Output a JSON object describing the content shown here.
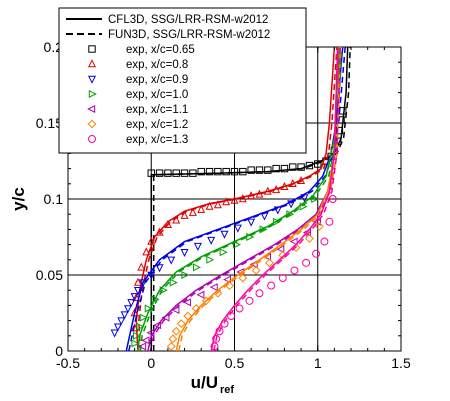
{
  "chart_data": {
    "type": "line",
    "xlabel": "u/U",
    "xlabel_sub": "ref",
    "ylabel": "y/c",
    "xlim": [
      -0.5,
      1.5
    ],
    "ylim": [
      0,
      0.2
    ],
    "x_ticks": [
      -0.5,
      0,
      0.5,
      1,
      1.5
    ],
    "x_tick_labels": [
      "-0.5",
      "0",
      "0.5",
      "1",
      "1.5"
    ],
    "y_ticks": [
      0,
      0.05,
      0.1,
      0.15,
      0.2
    ],
    "y_tick_labels": [
      "0",
      "0.05",
      "0.1",
      "0.15",
      "0.2"
    ],
    "grid": true,
    "legend_position": "top-left",
    "legend": [
      {
        "label": "CFL3D, SSG/LRR-RSM-w2012",
        "style": "solid-line",
        "color": "#000000"
      },
      {
        "label": "FUN3D, SSG/LRR-RSM-w2012",
        "style": "dashed-line",
        "color": "#000000"
      },
      {
        "label": "exp, x/c=0.65",
        "style": "square",
        "color": "#000000"
      },
      {
        "label": "exp, x/c=0.8",
        "style": "triangle-up",
        "color": "#e00000"
      },
      {
        "label": "exp, x/c=0.9",
        "style": "triangle-down",
        "color": "#0000e0"
      },
      {
        "label": "exp, x/c=1.0",
        "style": "triangle-right",
        "color": "#00a000"
      },
      {
        "label": "exp, x/c=1.1",
        "style": "triangle-left",
        "color": "#b000b0"
      },
      {
        "label": "exp, x/c=1.2",
        "style": "diamond",
        "color": "#ff8000"
      },
      {
        "label": "exp, x/c=1.3",
        "style": "circle",
        "color": "#ff00a0"
      }
    ],
    "series": [
      {
        "label_ref": "exp, x/c=0.65",
        "color": "#000000",
        "marker": "square",
        "cfd_x": [
          0,
          0,
          0.4,
          0.7,
          0.9,
          1.02,
          1.1,
          1.14,
          1.15,
          1.17,
          1.18
        ],
        "cfd_y": [
          0,
          0.116,
          0.117,
          0.118,
          0.12,
          0.125,
          0.13,
          0.14,
          0.15,
          0.17,
          0.2
        ],
        "exp_x": [
          0.0,
          0.05,
          0.1,
          0.15,
          0.2,
          0.25,
          0.3,
          0.35,
          0.4,
          0.45,
          0.5,
          0.55,
          0.6,
          0.65,
          0.7,
          0.75,
          0.8,
          0.85,
          0.9,
          0.95,
          1.0,
          1.05,
          1.08,
          1.1,
          1.12,
          1.13,
          1.14,
          1.15
        ],
        "exp_y": [
          0.117,
          0.117,
          0.117,
          0.117,
          0.117,
          0.117,
          0.118,
          0.118,
          0.118,
          0.118,
          0.118,
          0.118,
          0.119,
          0.119,
          0.119,
          0.12,
          0.12,
          0.121,
          0.121,
          0.122,
          0.123,
          0.125,
          0.128,
          0.132,
          0.138,
          0.145,
          0.152,
          0.158
        ]
      },
      {
        "label_ref": "exp, x/c=0.8",
        "color": "#e00000",
        "marker": "triangle-up",
        "cfd_x": [
          -0.08,
          -0.09,
          -0.07,
          -0.03,
          0.02,
          0.1,
          0.2,
          0.35,
          0.5,
          0.7,
          0.85,
          0.95,
          1.02,
          1.05,
          1.07,
          1.1
        ],
        "cfd_y": [
          0,
          0.02,
          0.04,
          0.06,
          0.075,
          0.085,
          0.092,
          0.097,
          0.1,
          0.105,
          0.11,
          0.115,
          0.12,
          0.13,
          0.15,
          0.2
        ],
        "exp_x": [
          -0.1,
          -0.1,
          -0.09,
          -0.08,
          -0.06,
          -0.03,
          0.0,
          0.05,
          0.1,
          0.15,
          0.2,
          0.25,
          0.3,
          0.35,
          0.4,
          0.45,
          0.5,
          0.55,
          0.6,
          0.65,
          0.7,
          0.75,
          0.8,
          0.85,
          0.9
        ],
        "exp_y": [
          0.015,
          0.025,
          0.035,
          0.045,
          0.055,
          0.065,
          0.072,
          0.078,
          0.083,
          0.086,
          0.089,
          0.091,
          0.093,
          0.095,
          0.096,
          0.098,
          0.099,
          0.1,
          0.102,
          0.103,
          0.105,
          0.106,
          0.108,
          0.11,
          0.112
        ]
      },
      {
        "label_ref": "exp, x/c=0.9",
        "color": "#0000e0",
        "marker": "triangle-down",
        "cfd_x": [
          -0.15,
          -0.13,
          -0.1,
          -0.05,
          0.05,
          0.2,
          0.4,
          0.6,
          0.8,
          0.95,
          1.03,
          1.08,
          1.11,
          1.15
        ],
        "cfd_y": [
          0,
          0.01,
          0.025,
          0.045,
          0.06,
          0.072,
          0.08,
          0.088,
          0.096,
          0.105,
          0.115,
          0.13,
          0.15,
          0.2
        ],
        "exp_x": [
          -0.22,
          -0.2,
          -0.18,
          -0.16,
          -0.14,
          -0.12,
          -0.1,
          -0.08,
          -0.05,
          0.0,
          0.05,
          0.12,
          0.2,
          0.28,
          0.36,
          0.44,
          0.52,
          0.6,
          0.68,
          0.76,
          0.84,
          0.92
        ],
        "exp_y": [
          0.012,
          0.016,
          0.02,
          0.024,
          0.028,
          0.032,
          0.036,
          0.04,
          0.045,
          0.05,
          0.055,
          0.06,
          0.065,
          0.069,
          0.073,
          0.077,
          0.081,
          0.085,
          0.089,
          0.093,
          0.097,
          0.101
        ]
      },
      {
        "label_ref": "exp, x/c=1.0",
        "color": "#00a000",
        "marker": "triangle-right",
        "cfd_x": [
          -0.08,
          -0.07,
          -0.02,
          0.05,
          0.15,
          0.3,
          0.5,
          0.7,
          0.85,
          0.97,
          1.05,
          1.1,
          1.13
        ],
        "cfd_y": [
          0,
          0.01,
          0.025,
          0.04,
          0.052,
          0.062,
          0.072,
          0.082,
          0.092,
          0.102,
          0.115,
          0.14,
          0.2
        ],
        "exp_x": [
          -0.1,
          -0.09,
          -0.07,
          -0.05,
          -0.02,
          0.02,
          0.07,
          0.13,
          0.2,
          0.27,
          0.35,
          0.43,
          0.51,
          0.59,
          0.67,
          0.75,
          0.83,
          0.91,
          0.98
        ],
        "exp_y": [
          0.005,
          0.01,
          0.016,
          0.022,
          0.028,
          0.034,
          0.04,
          0.045,
          0.05,
          0.055,
          0.06,
          0.065,
          0.07,
          0.075,
          0.08,
          0.085,
          0.09,
          0.095,
          0.1
        ]
      },
      {
        "label_ref": "exp, x/c=1.1",
        "color": "#b000b0",
        "marker": "triangle-left",
        "cfd_x": [
          -0.02,
          0.0,
          0.06,
          0.15,
          0.27,
          0.42,
          0.58,
          0.74,
          0.88,
          0.99,
          1.06,
          1.1,
          1.12
        ],
        "cfd_y": [
          0,
          0.01,
          0.02,
          0.03,
          0.04,
          0.05,
          0.06,
          0.07,
          0.08,
          0.09,
          0.105,
          0.13,
          0.2
        ],
        "exp_x": [
          -0.05,
          -0.03,
          0.0,
          0.04,
          0.09,
          0.15,
          0.22,
          0.3,
          0.38,
          0.46,
          0.54,
          0.62,
          0.7,
          0.78,
          0.86,
          0.94,
          1.0
        ],
        "exp_y": [
          0.003,
          0.007,
          0.012,
          0.017,
          0.022,
          0.027,
          0.032,
          0.037,
          0.042,
          0.047,
          0.052,
          0.057,
          0.062,
          0.067,
          0.072,
          0.078,
          0.085
        ]
      },
      {
        "label_ref": "exp, x/c=1.2",
        "color": "#ff8000",
        "marker": "diamond",
        "cfd_x": [
          0.15,
          0.17,
          0.22,
          0.3,
          0.4,
          0.52,
          0.65,
          0.78,
          0.9,
          1.0,
          1.06,
          1.1,
          1.12
        ],
        "cfd_y": [
          0,
          0.01,
          0.02,
          0.03,
          0.04,
          0.05,
          0.06,
          0.07,
          0.08,
          0.09,
          0.105,
          0.13,
          0.2
        ],
        "exp_x": [
          0.12,
          0.13,
          0.15,
          0.18,
          0.22,
          0.27,
          0.33,
          0.4,
          0.47,
          0.55,
          0.63,
          0.71,
          0.79,
          0.87,
          0.95,
          1.01
        ],
        "exp_y": [
          0.003,
          0.008,
          0.013,
          0.018,
          0.023,
          0.028,
          0.033,
          0.038,
          0.043,
          0.048,
          0.053,
          0.058,
          0.063,
          0.068,
          0.074,
          0.082
        ]
      },
      {
        "label_ref": "exp, x/c=1.3",
        "color": "#ff00a0",
        "marker": "circle",
        "cfd_x": [
          0.36,
          0.38,
          0.43,
          0.5,
          0.58,
          0.67,
          0.77,
          0.87,
          0.95,
          1.02,
          1.07,
          1.1,
          1.12
        ],
        "cfd_y": [
          0,
          0.01,
          0.02,
          0.03,
          0.04,
          0.05,
          0.06,
          0.07,
          0.08,
          0.09,
          0.105,
          0.13,
          0.2
        ],
        "exp_x": [
          0.38,
          0.39,
          0.41,
          0.44,
          0.48,
          0.53,
          0.59,
          0.65,
          0.72,
          0.79,
          0.86,
          0.93,
          0.99,
          1.04,
          1.07,
          1.09
        ],
        "exp_y": [
          0.003,
          0.008,
          0.013,
          0.018,
          0.023,
          0.028,
          0.033,
          0.038,
          0.043,
          0.048,
          0.053,
          0.058,
          0.064,
          0.072,
          0.085,
          0.1
        ]
      }
    ]
  }
}
